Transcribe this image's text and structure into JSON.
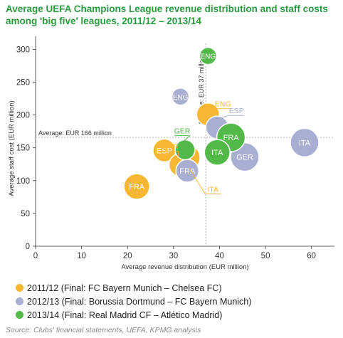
{
  "title_lines": [
    "Average UEFA Champions League revenue distribution and staff costs",
    "among 'big five' leagues, 2011/12 – 2013/14"
  ],
  "source": "Source: Clubs' financial statements, UEFA, KPMG analysis",
  "chart_data": {
    "type": "scatter",
    "xlabel": "Average revenue distribution (EUR million)",
    "ylabel": "Average staff cost (EUR million)",
    "xlim": [
      0,
      65
    ],
    "ylim": [
      0,
      320
    ],
    "xticks": [
      0,
      10,
      20,
      30,
      40,
      50,
      60
    ],
    "yticks": [
      0,
      50,
      100,
      150,
      200,
      250,
      300
    ],
    "reference_lines": [
      {
        "axis": "y",
        "value": 166,
        "label": "Average: EUR 166 million"
      },
      {
        "axis": "x",
        "value": 37,
        "label": "Average: EUR 37 million"
      }
    ],
    "colors": {
      "2011/12": "#f7b733",
      "2012/13": "#a8afd2",
      "2013/14": "#52b848"
    },
    "series": [
      {
        "name": "2011/12 (Final: FC Bayern Munich – Chelsea FC)",
        "color": "#f7b733",
        "points": [
          {
            "label": "FRA",
            "x": 22,
            "y": 91,
            "size": 18
          },
          {
            "label": "ESP",
            "x": 28,
            "y": 146,
            "size": 16
          },
          {
            "label": "GER",
            "x": 31.5,
            "y": 124,
            "size": 16
          },
          {
            "label": "ITA",
            "x": 33,
            "y": 135,
            "size": 18
          },
          {
            "label": "ENG",
            "x": 37.5,
            "y": 201,
            "size": 16
          }
        ]
      },
      {
        "name": "2012/13 (Final: Borussia Dortmund – FC Bayern Munich)",
        "color": "#a8afd2",
        "points": [
          {
            "label": "ENG",
            "x": 31.5,
            "y": 228,
            "size": 12
          },
          {
            "label": "FRA",
            "x": 33,
            "y": 115,
            "size": 16
          },
          {
            "label": "ESP",
            "x": 39.5,
            "y": 181,
            "size": 16
          },
          {
            "label": "GER",
            "x": 45.5,
            "y": 136,
            "size": 20
          },
          {
            "label": "ITA",
            "x": 58.5,
            "y": 158,
            "size": 20
          }
        ]
      },
      {
        "name": "2013/14 (Final: Real Madrid CF – Atlético Madrid)",
        "color": "#52b848",
        "points": [
          {
            "label": "GER",
            "x": 32.5,
            "y": 147,
            "size": 14
          },
          {
            "label": "ENG",
            "x": 37.5,
            "y": 290,
            "size": 12
          },
          {
            "label": "ITA",
            "x": 39.5,
            "y": 143,
            "size": 18
          },
          {
            "label": "FRA",
            "x": 42.5,
            "y": 166,
            "size": 20
          }
        ]
      }
    ]
  }
}
